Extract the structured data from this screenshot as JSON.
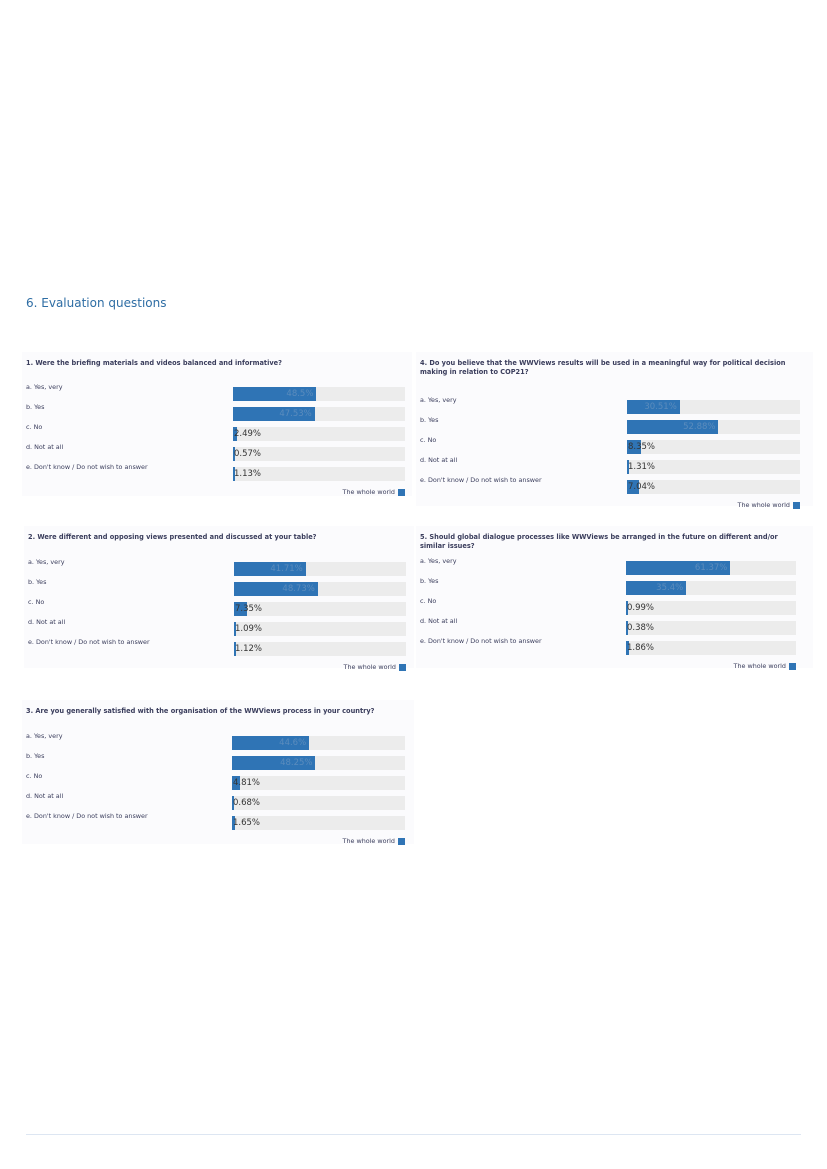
{
  "section_title": "6. Evaluation questions",
  "legend_label": "The whole world",
  "colors": {
    "bar": "#2f74b5",
    "track": "#ececec",
    "title": "#2e6da4"
  },
  "chart_data": [
    {
      "type": "bar",
      "title": "1. Were the briefing materials and videos balanced and informative?",
      "categories": [
        "a. Yes, very",
        "b. Yes",
        "c. No",
        "d. Not at all",
        "e. Don't know / Do not wish to answer"
      ],
      "values": [
        48.5,
        47.53,
        2.49,
        0.57,
        1.13
      ],
      "labels": [
        "48.5%",
        "47.53%",
        "2.49%",
        "0.57%",
        "1.13%"
      ],
      "xlim": [
        0,
        100
      ],
      "legend": "The whole world"
    },
    {
      "type": "bar",
      "title": "2. Were different and opposing views presented and discussed at your table?",
      "categories": [
        "a. Yes, very",
        "b. Yes",
        "c. No",
        "d. Not at all",
        "e. Don't know / Do not wish to answer"
      ],
      "values": [
        41.71,
        48.73,
        7.35,
        1.09,
        1.12
      ],
      "labels": [
        "41.71%",
        "48.73%",
        "7.35%",
        "1.09%",
        "1.12%"
      ],
      "xlim": [
        0,
        100
      ],
      "legend": "The whole world"
    },
    {
      "type": "bar",
      "title": "3. Are you generally satisfied with the organisation of the WWViews process in your country?",
      "categories": [
        "a. Yes, very",
        "b. Yes",
        "c. No",
        "d. Not at all",
        "e. Don't know / Do not wish to answer"
      ],
      "values": [
        44.6,
        48.25,
        4.81,
        0.68,
        1.65
      ],
      "labels": [
        "44.6%",
        "48.25%",
        "4.81%",
        "0.68%",
        "1.65%"
      ],
      "xlim": [
        0,
        100
      ],
      "legend": "The whole world"
    },
    {
      "type": "bar",
      "title": "4. Do you believe that the WWViews results will be used in a meaningful way for political decision making in relation to COP21?",
      "categories": [
        "a. Yes, very",
        "b. Yes",
        "c. No",
        "d. Not at all",
        "e. Don't know / Do not wish to answer"
      ],
      "values": [
        30.51,
        52.88,
        8.35,
        1.31,
        7.04
      ],
      "labels": [
        "30.51%",
        "52.88%",
        "8.35%",
        "1.31%",
        "7.04%"
      ],
      "xlim": [
        0,
        100
      ],
      "legend": "The whole world"
    },
    {
      "type": "bar",
      "title": "5. Should global dialogue processes like WWViews be arranged in the future on different and/or similar issues?",
      "categories": [
        "a. Yes, very",
        "b. Yes",
        "c. No",
        "d. Not at all",
        "e. Don't know / Do not wish to answer"
      ],
      "values": [
        61.37,
        35.4,
        0.99,
        0.38,
        1.86
      ],
      "labels": [
        "61.37%",
        "35.4%",
        "0.99%",
        "0.38%",
        "1.86%"
      ],
      "xlim": [
        0,
        100
      ],
      "legend": "The whole world"
    }
  ]
}
